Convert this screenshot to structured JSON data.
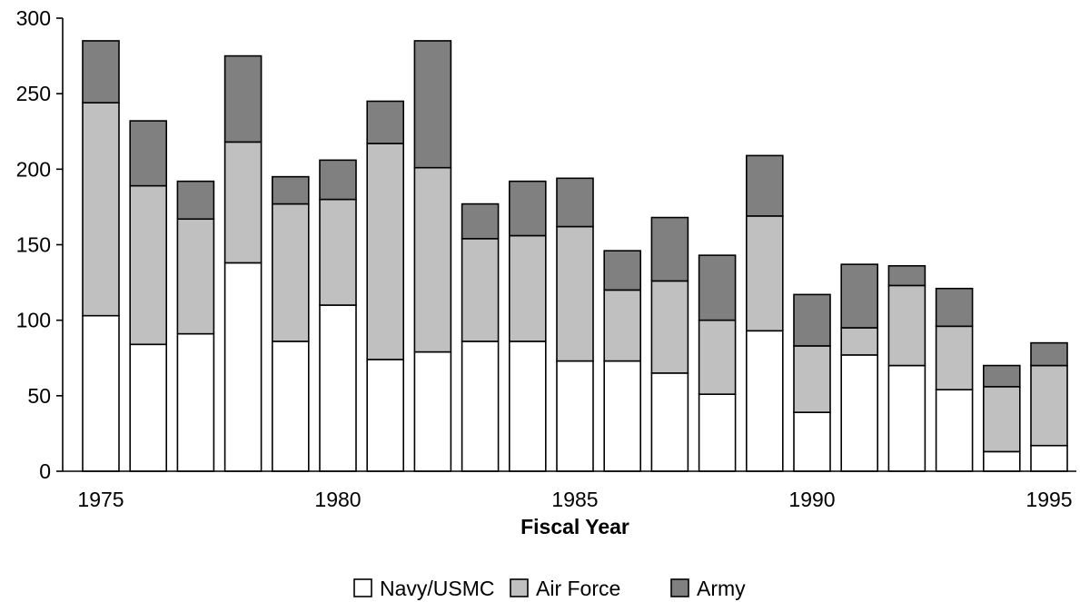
{
  "chart_data": {
    "type": "bar",
    "stacked": true,
    "title": "",
    "xlabel": "Fiscal Year",
    "ylabel": "",
    "ylim": [
      0,
      300
    ],
    "yticks": [
      0,
      50,
      100,
      150,
      200,
      250,
      300
    ],
    "xtick_labels": [
      "1975",
      "1980",
      "1985",
      "1990",
      "1995"
    ],
    "categories": [
      1975,
      1976,
      1977,
      1978,
      1979,
      1980,
      1981,
      1982,
      1983,
      1984,
      1985,
      1986,
      1987,
      1988,
      1989,
      1990,
      1991,
      1992,
      1993,
      1994,
      1995
    ],
    "series": [
      {
        "name": "Navy/USMC",
        "color": "#ffffff",
        "values": [
          103,
          84,
          91,
          138,
          86,
          110,
          74,
          79,
          86,
          86,
          73,
          73,
          65,
          51,
          93,
          39,
          77,
          70,
          54,
          13,
          17
        ]
      },
      {
        "name": "Air Force",
        "color": "#c0c0c0",
        "values": [
          141,
          105,
          76,
          80,
          91,
          70,
          143,
          122,
          68,
          70,
          89,
          47,
          61,
          49,
          76,
          44,
          18,
          53,
          42,
          43,
          53
        ]
      },
      {
        "name": "Army",
        "color": "#808080",
        "values": [
          41,
          43,
          25,
          57,
          18,
          26,
          28,
          84,
          23,
          36,
          32,
          26,
          42,
          43,
          40,
          34,
          42,
          13,
          25,
          14,
          15
        ]
      }
    ],
    "legend_position": "bottom-center",
    "grid": false
  }
}
